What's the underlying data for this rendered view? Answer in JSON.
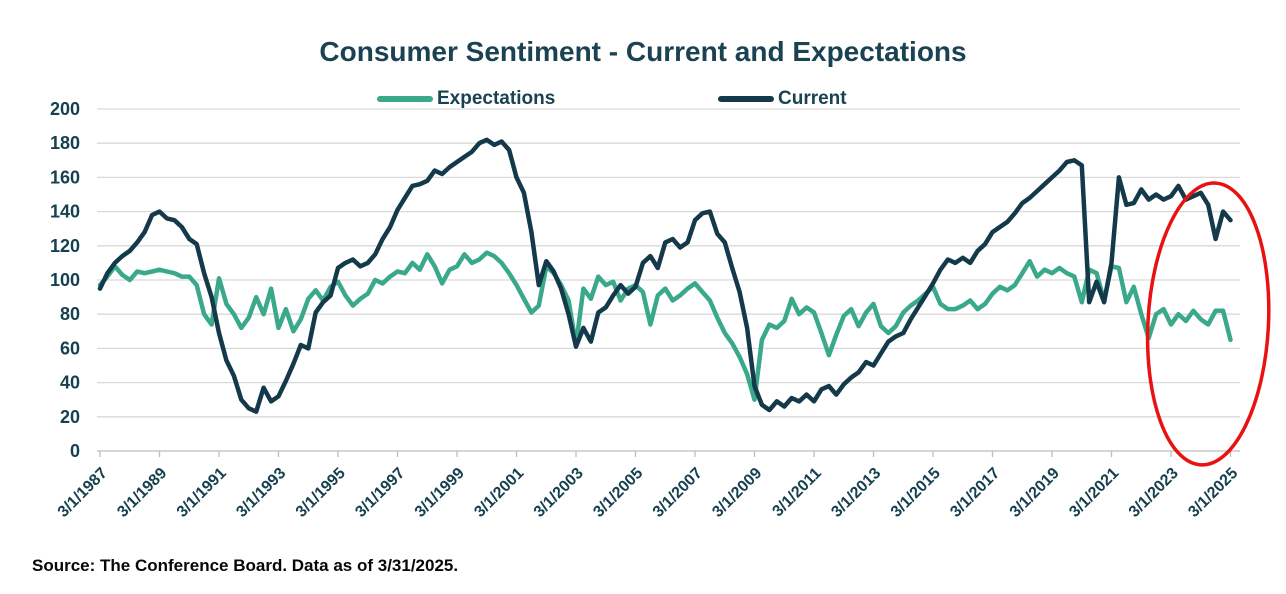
{
  "source": "Source: The Conference Board. Data as of 3/31/2025.",
  "colors": {
    "title_text": "#1a4252",
    "axis_label_text": "#16404f",
    "gridline": "#d9d9d9",
    "axis_line": "#bdbdbd",
    "background": "#ffffff",
    "highlight_red": "#e81212"
  },
  "chart_data": {
    "type": "line",
    "title": "Consumer Sentiment - Current and Expectations",
    "xlabel": "",
    "ylabel": "",
    "ylim": [
      0,
      200
    ],
    "y_ticks": [
      0,
      20,
      40,
      60,
      80,
      100,
      120,
      140,
      160,
      180,
      200
    ],
    "grid": "horizontal",
    "legend_position": "top",
    "x_frequency": "quarterly",
    "x_start": "3/1/1987",
    "x_end": "3/1/2025",
    "points_per_x_label": 8,
    "x_tick_labels": [
      "3/1/1987",
      "3/1/1989",
      "3/1/1991",
      "3/1/1993",
      "3/1/1995",
      "3/1/1997",
      "3/1/1999",
      "3/1/2001",
      "3/1/2003",
      "3/1/2005",
      "3/1/2007",
      "3/1/2009",
      "3/1/2011",
      "3/1/2013",
      "3/1/2015",
      "3/1/2017",
      "3/1/2019",
      "3/1/2021",
      "3/1/2023",
      "3/1/2025"
    ],
    "series": [
      {
        "name": "Expectations",
        "color": "#3aa98b",
        "stroke_width": 4.5,
        "values": [
          97,
          102,
          108,
          103,
          100,
          105,
          104,
          105,
          106,
          105,
          104,
          102,
          102,
          97,
          80,
          74,
          101,
          86,
          80,
          72,
          78,
          90,
          80,
          95,
          72,
          83,
          70,
          77,
          89,
          94,
          88,
          96,
          99,
          91,
          85,
          89,
          92,
          100,
          98,
          102,
          105,
          104,
          110,
          106,
          115,
          108,
          98,
          106,
          108,
          115,
          110,
          112,
          116,
          114,
          110,
          104,
          97,
          89,
          81,
          85,
          108,
          104,
          97,
          88,
          62,
          95,
          89,
          102,
          97,
          99,
          88,
          95,
          97,
          93,
          74,
          91,
          95,
          88,
          91,
          95,
          98,
          93,
          88,
          78,
          69,
          63,
          55,
          45,
          30,
          65,
          74,
          72,
          76,
          89,
          80,
          84,
          81,
          69,
          56,
          68,
          79,
          83,
          73,
          81,
          86,
          73,
          69,
          73,
          81,
          85,
          88,
          92,
          96,
          86,
          83,
          83,
          85,
          88,
          83,
          86,
          92,
          96,
          94,
          97,
          104,
          111,
          102,
          106,
          104,
          107,
          104,
          102,
          87,
          106,
          104,
          88,
          108,
          107,
          87,
          96,
          80,
          66,
          80,
          83,
          74,
          80,
          76,
          82,
          77,
          74,
          82,
          82,
          65
        ]
      },
      {
        "name": "Current",
        "color": "#14394b",
        "stroke_width": 4.5,
        "values": [
          95,
          104,
          110,
          114,
          117,
          122,
          128,
          138,
          140,
          136,
          135,
          131,
          124,
          121,
          104,
          90,
          69,
          53,
          44,
          30,
          25,
          23,
          37,
          29,
          32,
          41,
          51,
          62,
          60,
          81,
          87,
          91,
          107,
          110,
          112,
          108,
          110,
          115,
          124,
          131,
          141,
          148,
          155,
          156,
          158,
          164,
          162,
          166,
          169,
          172,
          175,
          180,
          182,
          179,
          181,
          176,
          160,
          151,
          128,
          97,
          111,
          105,
          95,
          80,
          61,
          72,
          64,
          81,
          84,
          91,
          97,
          92,
          96,
          110,
          114,
          107,
          122,
          124,
          119,
          122,
          135,
          139,
          140,
          127,
          122,
          107,
          93,
          72,
          38,
          27,
          24,
          29,
          26,
          31,
          29,
          33,
          29,
          36,
          38,
          33,
          39,
          43,
          46,
          52,
          50,
          57,
          64,
          67,
          69,
          77,
          84,
          91,
          98,
          106,
          112,
          110,
          113,
          110,
          117,
          121,
          128,
          131,
          134,
          139,
          145,
          148,
          152,
          156,
          160,
          164,
          169,
          170,
          167,
          87,
          99,
          87,
          110,
          160,
          144,
          145,
          153,
          147,
          150,
          147,
          149,
          155,
          147,
          149,
          151,
          144,
          124,
          140,
          135
        ]
      }
    ],
    "annotation": {
      "shape": "ellipse",
      "highlights": "recent divergence, 2023 through 3/2025",
      "cx_index": 149,
      "cy_value": 74.3,
      "rx_index": 8.1,
      "ry_value": 82.5,
      "rotate_deg": 3,
      "color": "#e81212",
      "stroke_width": 3.5
    }
  }
}
